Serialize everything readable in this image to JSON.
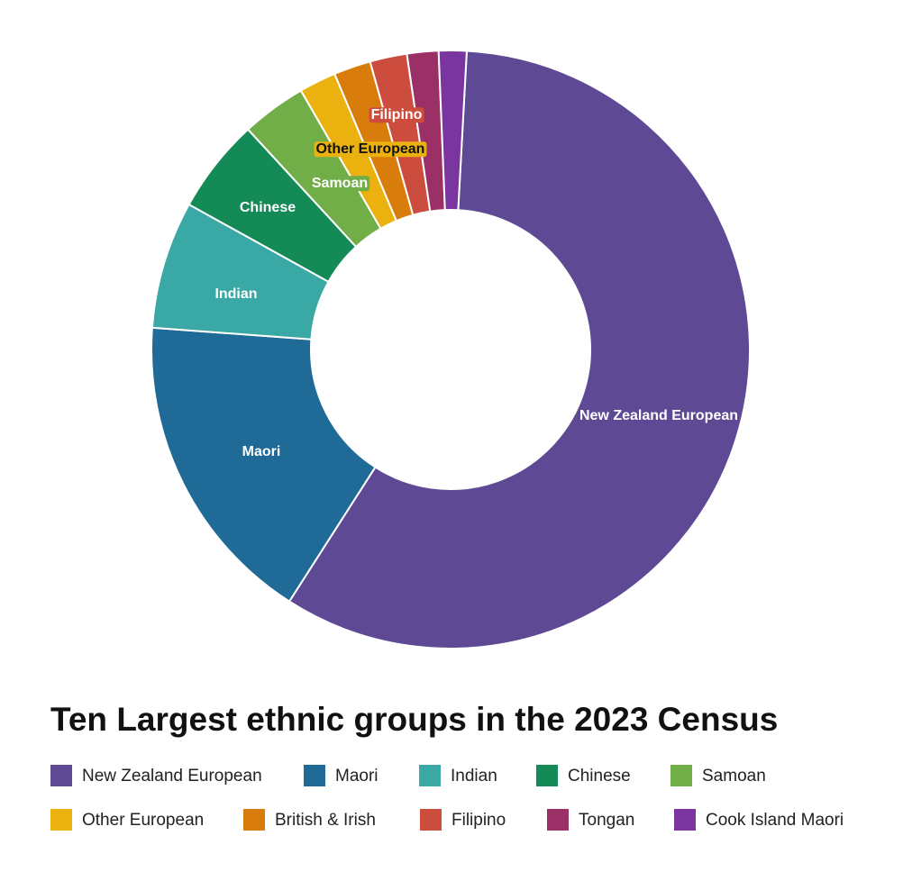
{
  "chart_data": {
    "type": "donut",
    "title": "Ten Largest ethnic groups in the 2023 Census",
    "categories": [
      "New Zealand European",
      "Maori",
      "Indian",
      "Chinese",
      "Samoan",
      "Other European",
      "British & Irish",
      "Filipino",
      "Tongan",
      "Cook Island Maori"
    ],
    "values": [
      58.2,
      17.1,
      6.9,
      5.1,
      3.5,
      2.0,
      2.0,
      2.0,
      1.7,
      1.5
    ],
    "colors": [
      "#5e4a94",
      "#1f6a96",
      "#3aa8a4",
      "#148a56",
      "#71ae48",
      "#eab10f",
      "#d87c0b",
      "#cc4c3e",
      "#9a3066",
      "#7a35a0"
    ]
  }
}
